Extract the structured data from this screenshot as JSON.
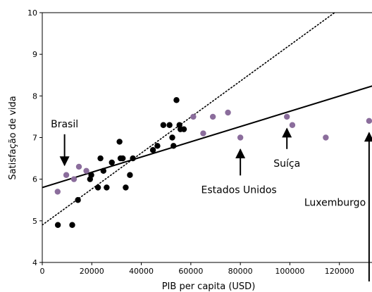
{
  "chart_data": {
    "type": "scatter",
    "title": "",
    "xlabel": "PIB per capita (USD)",
    "ylabel": "Satisfação de vida",
    "xlim": [
      0,
      140000
    ],
    "ylim": [
      4,
      10
    ],
    "xticks": [
      0,
      20000,
      40000,
      60000,
      80000,
      100000,
      120000
    ],
    "yticks": [
      4,
      5,
      6,
      7,
      8,
      9,
      10
    ],
    "grid": false,
    "legend": "none",
    "series": [
      {
        "color": "#000000",
        "points": [
          [
            6300,
            4.9
          ],
          [
            12100,
            4.9
          ],
          [
            14400,
            5.5
          ],
          [
            19300,
            6.0
          ],
          [
            19800,
            6.1
          ],
          [
            22500,
            5.8
          ],
          [
            23500,
            6.5
          ],
          [
            24700,
            6.2
          ],
          [
            26000,
            5.8
          ],
          [
            28100,
            6.4
          ],
          [
            31200,
            6.9
          ],
          [
            31600,
            6.5
          ],
          [
            32500,
            6.5
          ],
          [
            33700,
            5.8
          ],
          [
            35400,
            6.1
          ],
          [
            36600,
            6.5
          ],
          [
            44700,
            6.7
          ],
          [
            46500,
            6.8
          ],
          [
            48900,
            7.3
          ],
          [
            51400,
            7.3
          ],
          [
            52500,
            7.0
          ],
          [
            53000,
            6.8
          ],
          [
            54200,
            7.9
          ],
          [
            55400,
            7.3
          ],
          [
            55800,
            7.2
          ],
          [
            57200,
            7.2
          ]
        ]
      },
      {
        "color": "#8b6d9c",
        "points": [
          [
            6200,
            5.7
          ],
          [
            9700,
            6.1
          ],
          [
            12800,
            6.0
          ],
          [
            14800,
            6.3
          ],
          [
            17800,
            6.2
          ],
          [
            61000,
            7.5
          ],
          [
            65000,
            7.1
          ],
          [
            68900,
            7.5
          ],
          [
            75000,
            7.6
          ],
          [
            80000,
            7.0
          ],
          [
            98800,
            7.5
          ],
          [
            101000,
            7.3
          ],
          [
            114500,
            7.0
          ],
          [
            132000,
            7.4
          ]
        ]
      }
    ],
    "lines": [
      {
        "style": "solid",
        "color": "#000000",
        "intercept": 5.8,
        "slope": 1.83e-05
      },
      {
        "style": "dotted",
        "color": "#000000",
        "intercept": 4.9,
        "slope": 4.32e-05
      }
    ],
    "annotations": [
      {
        "text": "Brasil",
        "point": [
          9000,
          6.2
        ],
        "direction": "down"
      },
      {
        "text": "Estados Unidos",
        "point": [
          80000,
          6.85
        ],
        "direction": "up"
      },
      {
        "text": "Suíça",
        "point": [
          98800,
          7.35
        ],
        "direction": "up"
      },
      {
        "text": "Luxemburgo",
        "point": [
          132000,
          7.25
        ],
        "direction": "up"
      }
    ]
  }
}
